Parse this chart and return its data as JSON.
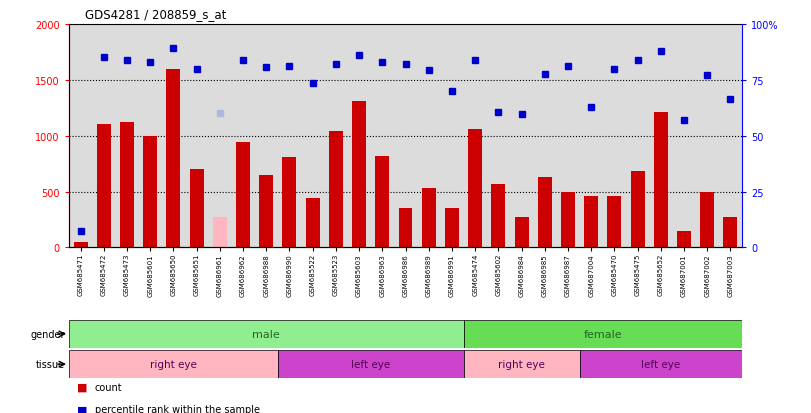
{
  "title": "GDS4281 / 208859_s_at",
  "samples": [
    "GSM685471",
    "GSM685472",
    "GSM685473",
    "GSM685601",
    "GSM685650",
    "GSM685651",
    "GSM686961",
    "GSM686962",
    "GSM686988",
    "GSM686990",
    "GSM685522",
    "GSM685523",
    "GSM685603",
    "GSM686963",
    "GSM686986",
    "GSM686989",
    "GSM686991",
    "GSM685474",
    "GSM685602",
    "GSM686984",
    "GSM686985",
    "GSM686987",
    "GSM687004",
    "GSM685470",
    "GSM685475",
    "GSM685652",
    "GSM687001",
    "GSM687002",
    "GSM687003"
  ],
  "bar_values": [
    50,
    1100,
    1120,
    1000,
    1600,
    700,
    270,
    940,
    650,
    810,
    440,
    1040,
    1310,
    820,
    350,
    530,
    350,
    1060,
    570,
    270,
    630,
    500,
    460,
    460,
    680,
    1210,
    150,
    500,
    270
  ],
  "bar_absent_indices": [
    6
  ],
  "rank_values": [
    150,
    1700,
    1680,
    1660,
    1780,
    1600,
    1200,
    1680,
    1610,
    1620,
    1470,
    1640,
    1720,
    1660,
    1640,
    1590,
    1400,
    1680,
    1210,
    1190,
    1550,
    1620,
    1260,
    1600,
    1680,
    1760,
    1140,
    1540,
    1330
  ],
  "rank_absent_indices": [
    6
  ],
  "gender_groups": [
    {
      "label": "male",
      "start": 0,
      "end": 17,
      "color": "#90EE90"
    },
    {
      "label": "female",
      "start": 17,
      "end": 29,
      "color": "#66DD55"
    }
  ],
  "tissue_groups": [
    {
      "label": "right eye",
      "start": 0,
      "end": 9,
      "color": "#FFB6C1"
    },
    {
      "label": "left eye",
      "start": 9,
      "end": 17,
      "color": "#CC44CC"
    },
    {
      "label": "right eye",
      "start": 17,
      "end": 22,
      "color": "#FFB6C1"
    },
    {
      "label": "left eye",
      "start": 22,
      "end": 29,
      "color": "#CC44CC"
    }
  ],
  "bar_color": "#CC0000",
  "bar_absent_color": "#FFB6C1",
  "rank_color": "#0000CC",
  "rank_absent_color": "#AABBDD",
  "plot_bg": "#DCDCDC",
  "ylim_left": [
    0,
    2000
  ],
  "ylim_right": [
    0,
    100
  ],
  "yticks_left": [
    0,
    500,
    1000,
    1500,
    2000
  ],
  "yticks_right": [
    0,
    25,
    50,
    75,
    100
  ]
}
